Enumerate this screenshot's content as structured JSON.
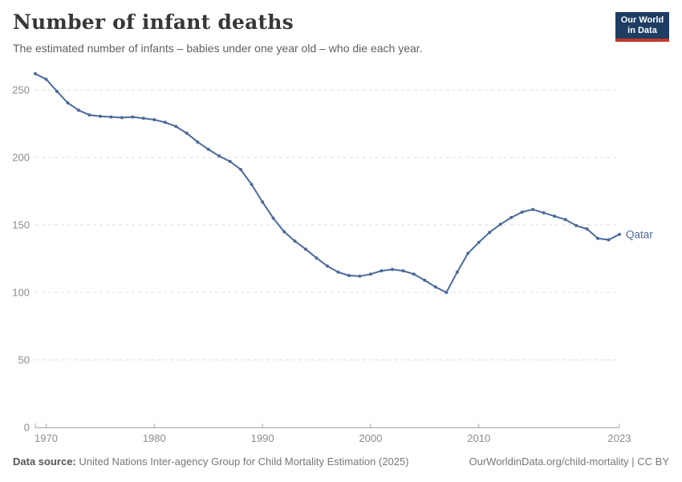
{
  "header": {
    "title": "Number of infant deaths",
    "subtitle": "The estimated number of infants – babies under one year old – who die each year.",
    "logo": {
      "line1": "Our World",
      "line2": "in Data"
    }
  },
  "chart_data": {
    "type": "line",
    "title": "Number of infant deaths",
    "xlabel": "",
    "ylabel": "",
    "xlim": [
      1969,
      2023
    ],
    "ylim": [
      0,
      250
    ],
    "x_ticks": [
      1970,
      1980,
      1990,
      2000,
      2010,
      2023
    ],
    "y_ticks": [
      0,
      50,
      100,
      150,
      200,
      250
    ],
    "grid": "dashed-horizontal",
    "legend_position": "end-of-line-label",
    "series": [
      {
        "name": "Qatar",
        "color": "#4c6a9c",
        "x": [
          1969,
          1970,
          1971,
          1972,
          1973,
          1974,
          1975,
          1976,
          1977,
          1978,
          1979,
          1980,
          1981,
          1982,
          1983,
          1984,
          1985,
          1986,
          1987,
          1988,
          1989,
          1990,
          1991,
          1992,
          1993,
          1994,
          1995,
          1996,
          1997,
          1998,
          1999,
          2000,
          2001,
          2002,
          2003,
          2004,
          2005,
          2006,
          2007,
          2008,
          2009,
          2010,
          2011,
          2012,
          2013,
          2014,
          2015,
          2016,
          2017,
          2018,
          2019,
          2020,
          2021,
          2022,
          2023
        ],
        "values": [
          262,
          258,
          249,
          240.5,
          235,
          231.5,
          230.5,
          230,
          229.5,
          230,
          229,
          228,
          226,
          223,
          218,
          211.5,
          206,
          201,
          197,
          191,
          180,
          167,
          155,
          145,
          138,
          132,
          125.5,
          119.5,
          115,
          112.5,
          112,
          113.5,
          116,
          117,
          116,
          113.5,
          109,
          104,
          100,
          115,
          129,
          137,
          144.5,
          150.5,
          155.5,
          159.5,
          161.5,
          159,
          156.5,
          154,
          149.5,
          147,
          140,
          139,
          143
        ]
      }
    ]
  },
  "footer": {
    "source_label": "Data source:",
    "source_text": " United Nations Inter-agency Group for Child Mortality Estimation (2025)",
    "attribution": "OurWorldinData.org/child-mortality | CC BY"
  },
  "colors": {
    "accent_line": "#4c6a9c",
    "end_label": "#4c6a9c",
    "logo_bg": "#1d3d63",
    "logo_red": "#c0392b",
    "grid": "#dddddd",
    "axis": "#a8a8a8",
    "tick_label": "#8c8c8c",
    "title": "#373737",
    "subtitle": "#606060",
    "footer": "#777777"
  }
}
